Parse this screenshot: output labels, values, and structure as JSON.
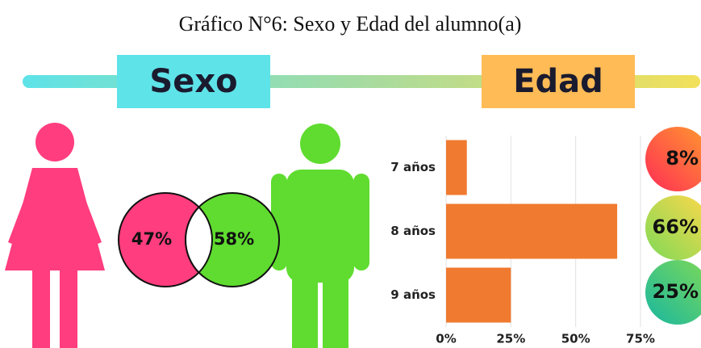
{
  "title": "Gráfico N°6: Sexo y Edad del alumno(a)",
  "chart_data": [
    {
      "type": "venn",
      "title": "Sexo",
      "values": [
        47,
        58
      ],
      "value_labels": [
        "47%",
        "58%"
      ],
      "colors": [
        "#ff3d7f",
        "#5fdc2f"
      ]
    },
    {
      "type": "bar",
      "title": "Edad",
      "orientation": "horizontal",
      "categories": [
        "7 años",
        "8 años",
        "9 años"
      ],
      "values": [
        8,
        66,
        25
      ],
      "value_labels": [
        "8%",
        "66%",
        "25%"
      ],
      "color": "#f07a2f",
      "xlim": [
        0,
        75
      ],
      "xticks": [
        {
          "value": 0,
          "label": "0%"
        },
        {
          "value": 25,
          "label": "25%"
        },
        {
          "value": 50,
          "label": "50%"
        },
        {
          "value": 75,
          "label": "75%"
        }
      ],
      "grid": true
    }
  ]
}
